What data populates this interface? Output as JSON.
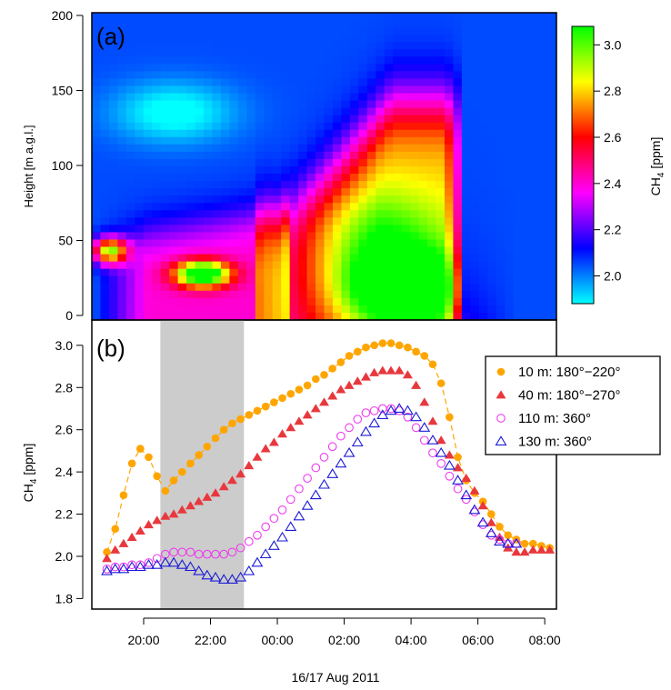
{
  "figure": {
    "date_label": "16/17 Aug 2011"
  },
  "chart_data": [
    {
      "type": "heatmap",
      "panel_label": "(a)",
      "ylabel": "Height [m a.g.l.]",
      "ylim": [
        0,
        200
      ],
      "yticks": [
        0,
        50,
        100,
        150,
        200
      ],
      "colorbar": {
        "label_main": "CH",
        "label_sub": "4",
        "label_unit": " [ppm]",
        "range": [
          1.88,
          3.08
        ],
        "ticks": [
          2.0,
          2.2,
          2.4,
          2.6,
          2.8,
          3.0
        ],
        "tick_labels": [
          "2.0",
          "2.2",
          "2.4",
          "2.6",
          "2.8",
          "3.0"
        ],
        "colors": [
          "#00ffff",
          "#0000ff",
          "#ff00ff",
          "#ff0000",
          "#ffff00",
          "#00ff00"
        ]
      },
      "time_range_hours": [
        18.9,
        31.9
      ],
      "height_range_m": [
        0,
        200
      ],
      "field_description_values": {
        "background": 2.05,
        "low_plume_peak": 3.05
      }
    },
    {
      "type": "scatter",
      "panel_label": "(b)",
      "ylabel_main": "CH",
      "ylabel_sub": "4",
      "ylabel_unit": " [ppm]",
      "ylim": [
        1.75,
        3.12
      ],
      "yticks": [
        1.8,
        2.0,
        2.2,
        2.4,
        2.6,
        2.8,
        3.0
      ],
      "ytick_labels": [
        "1.8",
        "2.0",
        "2.2",
        "2.4",
        "2.6",
        "2.8",
        "3.0"
      ],
      "xlim": [
        18.45,
        32.35
      ],
      "xticks": [
        20,
        22,
        24,
        26,
        28,
        30,
        32
      ],
      "xtick_labels": [
        "20:00",
        "22:00",
        "00:00",
        "02:00",
        "04:00",
        "06:00",
        "08:00"
      ],
      "shaded_interval": [
        20.5,
        23.0
      ],
      "legend_position": "top-right",
      "x_start": 18.9,
      "x_step": 0.25,
      "series": [
        {
          "name": "10 m: 180°−220°",
          "marker": "filled-circle",
          "color": "#ffa500",
          "connected": true,
          "values": [
            2.02,
            2.13,
            2.29,
            2.44,
            2.51,
            2.47,
            2.38,
            2.31,
            2.36,
            2.4,
            2.44,
            2.48,
            2.52,
            2.56,
            2.6,
            2.63,
            2.65,
            2.67,
            2.69,
            2.71,
            2.73,
            2.75,
            2.77,
            2.79,
            2.81,
            2.84,
            2.86,
            2.89,
            2.92,
            2.95,
            2.97,
            2.99,
            3.0,
            3.01,
            3.01,
            3.0,
            2.99,
            2.97,
            2.95,
            2.91,
            2.82,
            2.66,
            2.47,
            2.36,
            2.3,
            2.26,
            2.2,
            2.14,
            2.1,
            2.08,
            2.06,
            2.06,
            2.05,
            2.04
          ]
        },
        {
          "name": "40 m: 180°−270°",
          "marker": "filled-triangle",
          "color": "#e8383d",
          "connected": false,
          "values": [
            1.99,
            2.03,
            2.06,
            2.09,
            2.12,
            2.15,
            2.17,
            2.19,
            2.2,
            2.22,
            2.24,
            2.26,
            2.28,
            2.3,
            2.33,
            2.36,
            2.39,
            2.43,
            2.47,
            2.51,
            2.54,
            2.58,
            2.61,
            2.64,
            2.67,
            2.7,
            2.73,
            2.76,
            2.79,
            2.81,
            2.83,
            2.85,
            2.87,
            2.88,
            2.88,
            2.88,
            2.86,
            2.81,
            2.73,
            2.64,
            2.55,
            2.48,
            2.42,
            2.37,
            2.31,
            2.24,
            2.16,
            2.09,
            2.04,
            2.02,
            2.02,
            2.03,
            2.03,
            2.03
          ]
        },
        {
          "name": "110 m: 360°",
          "marker": "open-circle",
          "color": "#ee3bee",
          "connected": false,
          "values": [
            1.94,
            1.95,
            1.95,
            1.96,
            1.96,
            1.97,
            1.99,
            2.01,
            2.02,
            2.02,
            2.02,
            2.01,
            2.01,
            2.01,
            2.01,
            2.02,
            2.04,
            2.07,
            2.1,
            2.14,
            2.18,
            2.22,
            2.27,
            2.32,
            2.37,
            2.42,
            2.47,
            2.52,
            2.57,
            2.61,
            2.65,
            2.68,
            2.69,
            2.7,
            2.7,
            2.69,
            2.66,
            2.61,
            2.55,
            2.49,
            2.44,
            2.38,
            2.32,
            2.27,
            2.21,
            2.15,
            2.1,
            2.08,
            2.06,
            2.06
          ]
        },
        {
          "name": "130 m: 360°",
          "marker": "open-triangle",
          "color": "#1a1ad6",
          "connected": false,
          "values": [
            1.93,
            1.94,
            1.94,
            1.95,
            1.95,
            1.96,
            1.96,
            1.97,
            1.97,
            1.96,
            1.95,
            1.93,
            1.91,
            1.9,
            1.89,
            1.89,
            1.9,
            1.93,
            1.97,
            2.01,
            2.05,
            2.09,
            2.14,
            2.19,
            2.24,
            2.29,
            2.34,
            2.39,
            2.44,
            2.49,
            2.54,
            2.59,
            2.63,
            2.67,
            2.69,
            2.7,
            2.69,
            2.66,
            2.61,
            2.55,
            2.49,
            2.43,
            2.36,
            2.29,
            2.22,
            2.16,
            2.11,
            2.07,
            2.06,
            2.06
          ]
        }
      ]
    }
  ]
}
